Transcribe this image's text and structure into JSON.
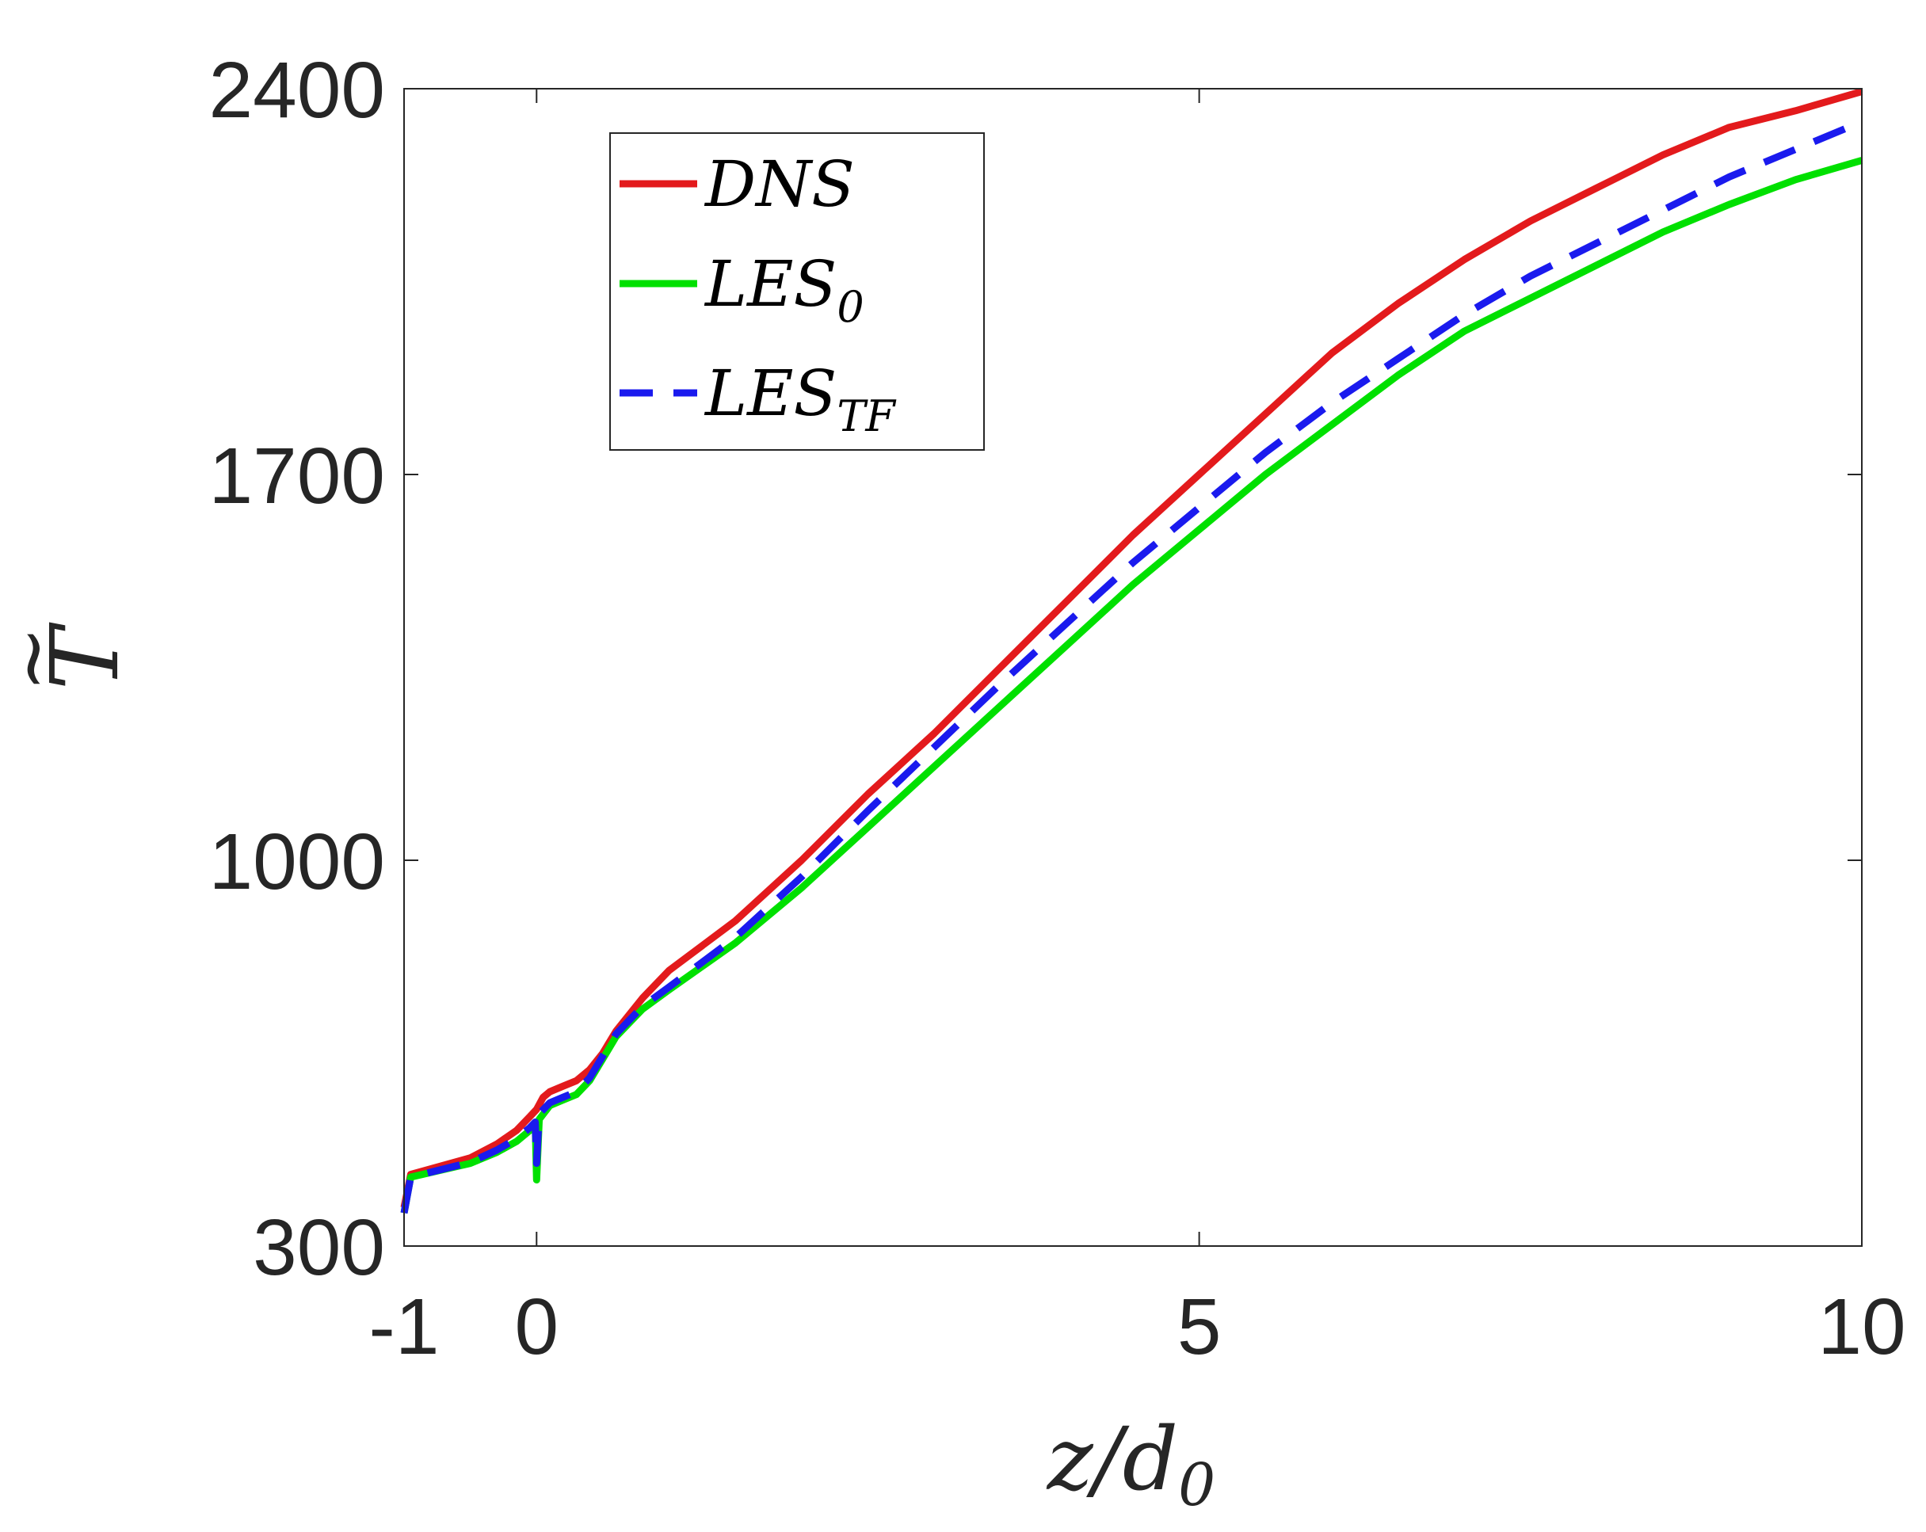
{
  "chart_data": {
    "type": "line",
    "xlabel": "z/d",
    "xlabel_sub": "0",
    "ylabel": "T",
    "ylabel_accent": "~",
    "xlim": [
      -1,
      10
    ],
    "ylim": [
      300,
      2400
    ],
    "xticks": [
      -1,
      0,
      5,
      10
    ],
    "xtick_labels": [
      "-1",
      "0",
      "5",
      "10"
    ],
    "yticks": [
      300,
      1000,
      1700,
      2400
    ],
    "ytick_labels": [
      "300",
      "1000",
      "1700",
      "2400"
    ],
    "grid": false,
    "legend_position": "top-left",
    "series": [
      {
        "name": "DNS",
        "name_sub": "",
        "color": "#e31a1c",
        "dash": "solid",
        "x": [
          -1.0,
          -0.95,
          -0.5,
          -0.3,
          -0.15,
          -0.05,
          0.0,
          0.05,
          0.1,
          0.2,
          0.3,
          0.4,
          0.5,
          0.6,
          0.8,
          1.0,
          1.5,
          2.0,
          2.5,
          3.0,
          3.5,
          4.0,
          4.5,
          5.0,
          5.5,
          6.0,
          6.5,
          7.0,
          7.5,
          8.0,
          8.5,
          9.0,
          9.5,
          10.0
        ],
        "y": [
          370,
          430,
          460,
          485,
          510,
          535,
          548,
          570,
          580,
          590,
          600,
          620,
          650,
          690,
          750,
          800,
          890,
          1000,
          1120,
          1230,
          1350,
          1470,
          1590,
          1700,
          1810,
          1920,
          2010,
          2090,
          2160,
          2220,
          2280,
          2330,
          2360,
          2395
        ]
      },
      {
        "name": "LES",
        "name_sub": "0",
        "color": "#00e000",
        "dash": "solid",
        "x": [
          -1.0,
          -0.95,
          -0.5,
          -0.3,
          -0.15,
          -0.05,
          -0.01,
          0.0,
          0.02,
          0.1,
          0.2,
          0.3,
          0.4,
          0.5,
          0.6,
          0.8,
          1.0,
          1.5,
          2.0,
          2.5,
          3.0,
          3.5,
          4.0,
          4.5,
          5.0,
          5.5,
          6.0,
          6.5,
          7.0,
          7.5,
          8.0,
          8.5,
          9.0,
          9.5,
          10.0
        ],
        "y": [
          360,
          425,
          450,
          470,
          490,
          510,
          520,
          420,
          530,
          555,
          565,
          575,
          600,
          640,
          680,
          730,
          765,
          850,
          950,
          1060,
          1170,
          1280,
          1390,
          1500,
          1600,
          1700,
          1790,
          1880,
          1960,
          2020,
          2080,
          2140,
          2190,
          2235,
          2270
        ]
      },
      {
        "name": "LES",
        "name_sub": "TF",
        "color": "#1a1aee",
        "dash": "dashed",
        "x": [
          -1.0,
          -0.95,
          -0.5,
          -0.3,
          -0.15,
          -0.05,
          -0.01,
          0.0,
          0.02,
          0.1,
          0.2,
          0.3,
          0.4,
          0.5,
          0.6,
          0.8,
          1.0,
          1.5,
          2.0,
          2.5,
          3.0,
          3.5,
          4.0,
          4.5,
          5.0,
          5.5,
          6.0,
          6.5,
          7.0,
          7.5,
          8.0,
          8.5,
          9.0,
          9.5,
          10.0
        ],
        "y": [
          360,
          425,
          452,
          474,
          495,
          515,
          525,
          450,
          540,
          560,
          570,
          580,
          605,
          645,
          685,
          735,
          770,
          860,
          970,
          1090,
          1205,
          1320,
          1430,
          1540,
          1640,
          1740,
          1830,
          1910,
          1990,
          2060,
          2120,
          2180,
          2240,
          2290,
          2340
        ]
      }
    ]
  }
}
